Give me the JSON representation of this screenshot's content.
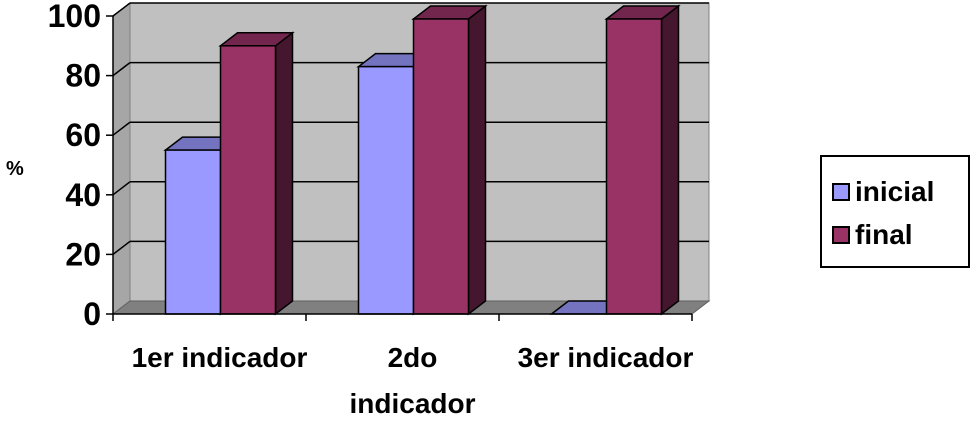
{
  "chart_data": {
    "type": "bar",
    "categories": [
      "1er indicador",
      "2do indicador",
      "3er indicador"
    ],
    "category_lines": [
      [
        "1er indicador"
      ],
      [
        "2do",
        "indicador"
      ],
      [
        "3er indicador"
      ]
    ],
    "series": [
      {
        "name": "inicial",
        "color": "#9999ff",
        "values": [
          55,
          83,
          0
        ]
      },
      {
        "name": "final",
        "color": "#993366",
        "values": [
          90,
          99,
          99
        ]
      }
    ],
    "ylabel": "%",
    "yticks": [
      0,
      20,
      40,
      60,
      80,
      100
    ],
    "ylim": [
      0,
      100
    ],
    "grid": true,
    "legend_position": "right",
    "style": "3d-clustered-bar",
    "plot_background": "#c0c0c0"
  }
}
